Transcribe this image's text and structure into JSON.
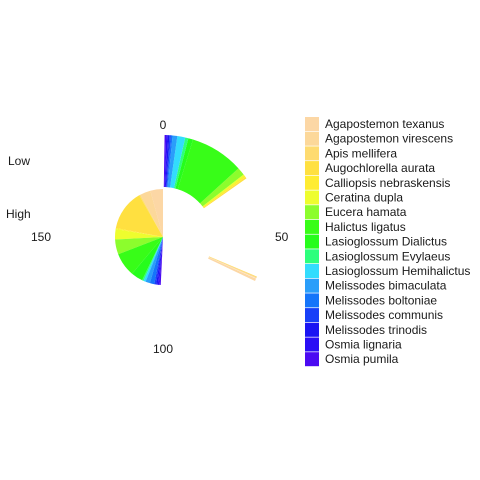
{
  "chart_data": {
    "type": "pie",
    "angular_axis": {
      "max": 200,
      "ticks": [
        0,
        50,
        100,
        150
      ]
    },
    "rings": [
      {
        "label": "Low",
        "values": [
          0.8,
          0.3,
          0.3,
          0.5,
          0.5,
          0.6,
          2.5,
          17.0,
          1.5,
          1.0,
          2.5,
          1.5,
          0.5,
          0.5,
          0.5,
          0.5,
          0.5
        ],
        "start_values": [
          63.4,
          63.0,
          62.7,
          30.0,
          29.5,
          29.0,
          26.5,
          9.5,
          8.0,
          7.0,
          4.5,
          3.0,
          2.5,
          2.0,
          1.5,
          1.0,
          0.5
        ]
      },
      {
        "label": "High",
        "values": [
          8.5,
          7.2,
          0.8,
          27.5,
          0.7,
          7.0,
          10.0,
          16.0,
          8.0,
          1.0,
          1.5,
          3.0,
          3.0,
          1.2,
          1.1,
          1.0,
          1.0
        ],
        "start_values": [
          191.5,
          184.3,
          183.5,
          156.0,
          155.3,
          148.3,
          138.3,
          122.3,
          114.3,
          113.3,
          111.8,
          108.8,
          105.8,
          104.6,
          103.5,
          102.5,
          101.5
        ]
      }
    ],
    "legend": {
      "position": "right",
      "entries": [
        "Agapostemon texanus",
        "Agapostemon virescens",
        "Apis mellifera",
        "Augochlorella aurata",
        "Calliopsis nebraskensis",
        "Ceratina dupla",
        "Eucera hamata",
        "Halictus ligatus",
        "Lasioglossum Dialictus",
        "Lasioglossum Evylaeus",
        "Lasioglossum Hemihalictus",
        "Melissodes bimaculata",
        "Melissodes boltoniae",
        "Melissodes communis",
        "Melissodes trinodis",
        "Osmia lignaria",
        "Osmia pumila"
      ],
      "colors": [
        "#fcd7a5",
        "#fcd89a",
        "#fedb70",
        "#ffe040",
        "#ffec32",
        "#eefd2e",
        "#8cfd2d",
        "#38fd18",
        "#26fd1c",
        "#2dff7c",
        "#33dcfd",
        "#2a9efa",
        "#1575fa",
        "#1840f8",
        "#1a14f3",
        "#2a0ef5",
        "#4b0af2"
      ]
    }
  }
}
